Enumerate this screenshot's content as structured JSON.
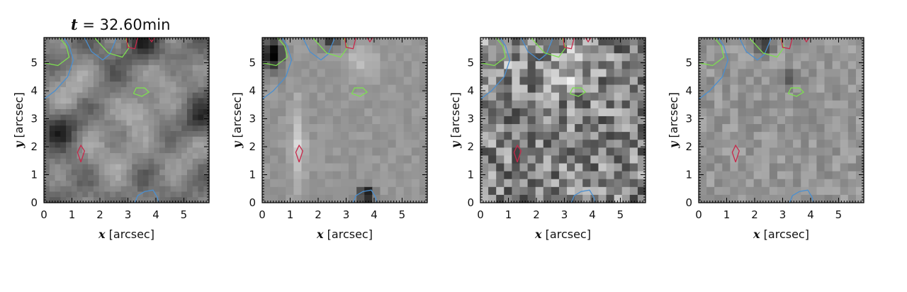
{
  "title": {
    "var": "t",
    "eq": " = ",
    "value": "32.60min"
  },
  "axes": {
    "x_var": "x",
    "y_var": "y",
    "unit": " [arcsec]",
    "ticks": [
      "0",
      "1",
      "2",
      "3",
      "4",
      "5"
    ],
    "range": [
      0,
      5.9
    ]
  },
  "panels": [
    {
      "id": "panel-1",
      "style": "smooth"
    },
    {
      "id": "panel-2",
      "style": "flat"
    },
    {
      "id": "panel-3",
      "style": "noisy"
    },
    {
      "id": "panel-4",
      "style": "faint"
    }
  ],
  "contours": {
    "blue": {
      "color": "#4a8fd0"
    },
    "green": {
      "color": "#7ee050"
    },
    "red": {
      "color": "#c8284a"
    }
  }
}
